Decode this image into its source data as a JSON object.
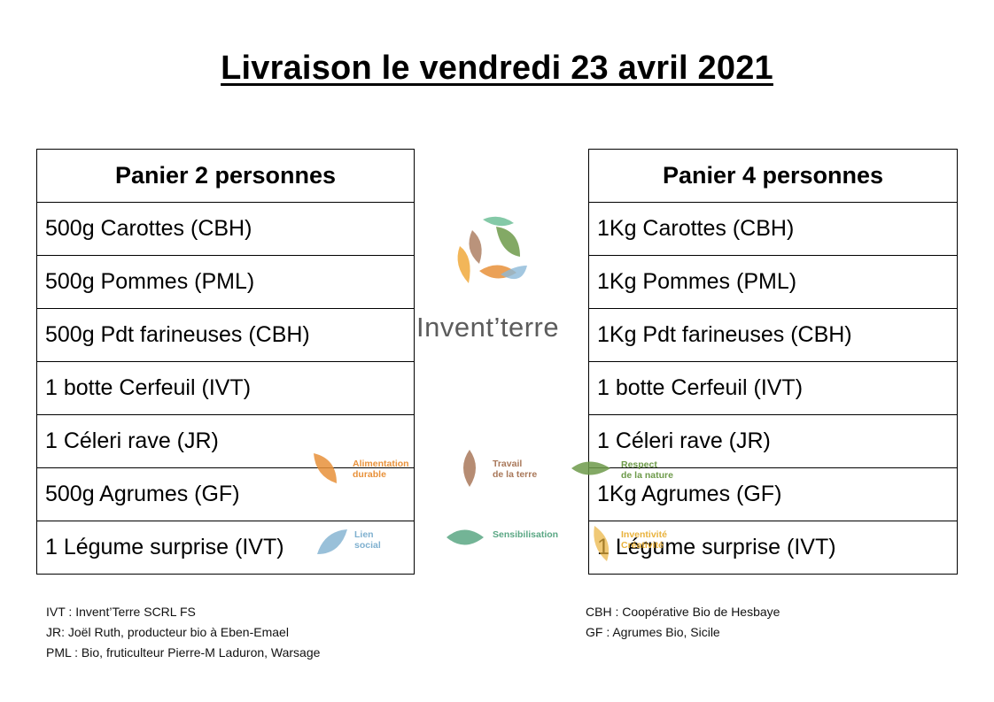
{
  "title": "Livraison le vendredi 23 avril 2021",
  "basket_2": {
    "header": "Panier 2 personnes",
    "items": [
      "500g Carottes (CBH)",
      "500g Pommes (PML)",
      "500g Pdt farineuses (CBH)",
      "1 botte Cerfeuil (IVT)",
      "1 Céleri rave (JR)",
      "500g Agrumes (GF)",
      "1 Légume surprise (IVT)"
    ]
  },
  "basket_4": {
    "header": "Panier 4 personnes",
    "items": [
      "1Kg Carottes (CBH)",
      "1Kg Pommes (PML)",
      "1Kg Pdt farineuses (CBH)",
      "1 botte Cerfeuil (IVT)",
      "1 Céleri rave (JR)",
      "1Kg Agrumes (GF)",
      "1 Légume surprise (IVT)"
    ]
  },
  "logo": {
    "name": "Invent’terre"
  },
  "values": [
    {
      "label1": "Alimentation",
      "label2": "durable",
      "color": "#e8913a",
      "icon": "leaf-icon"
    },
    {
      "label1": "Travail",
      "label2": "de la terre",
      "color": "#a9785a",
      "icon": "leaf-icon"
    },
    {
      "label1": "Respect",
      "label2": "de la nature",
      "color": "#6d9a4a",
      "icon": "leaf-icon"
    },
    {
      "label1": "Lien",
      "label2": "social",
      "color": "#7fb0cf",
      "icon": "leaf-icon"
    },
    {
      "label1": "Sensibilisation",
      "label2": "",
      "color": "#5aa784",
      "icon": "leaf-icon"
    },
    {
      "label1": "Inventivité",
      "label2": "Créativité",
      "color": "#e9b23c",
      "icon": "leaf-icon"
    }
  ],
  "legend_left": [
    "IVT : Invent’Terre SCRL FS",
    "JR: Joël Ruth, producteur bio à Eben-Emael",
    "PML : Bio, fruticulteur Pierre-M Laduron, Warsage"
  ],
  "legend_right": [
    "CBH : Coopérative Bio de Hesbaye",
    "GF : Agrumes Bio, Sicile"
  ]
}
